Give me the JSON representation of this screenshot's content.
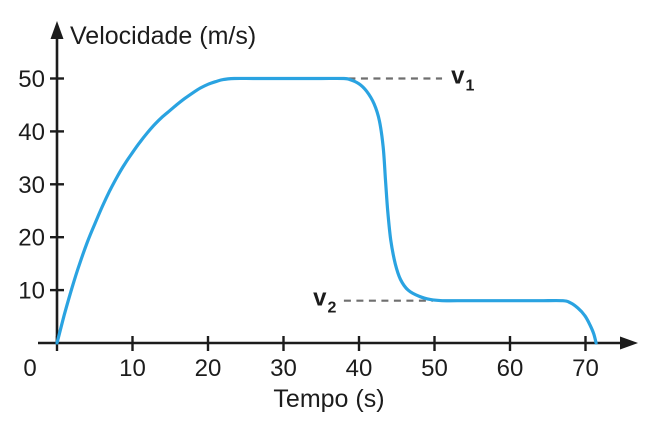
{
  "figure": {
    "background": "#ffffff",
    "curve_color": "#2aa3e1",
    "axis_color": "#1c1c1c",
    "dash_color": "#6f6f6f",
    "text_color": "#1c1c1c"
  },
  "chart_data": {
    "type": "line",
    "title": "Velocidade (m/s)",
    "ylabel": "Velocidade (m/s)",
    "xlabel": "Tempo (s)",
    "x_ticks": [
      0,
      10,
      20,
      30,
      40,
      50,
      60,
      70
    ],
    "y_ticks": [
      10,
      20,
      30,
      40,
      50
    ],
    "xlim": [
      0,
      77
    ],
    "ylim": [
      0,
      57
    ],
    "grid": false,
    "legend": "none",
    "series": [
      {
        "name": "velocidade",
        "color": "#2aa3e1",
        "points": [
          [
            0,
            0
          ],
          [
            1,
            5.5
          ],
          [
            2,
            10.5
          ],
          [
            3,
            15
          ],
          [
            4,
            19
          ],
          [
            5,
            22.5
          ],
          [
            6,
            25.8
          ],
          [
            7,
            28.8
          ],
          [
            8,
            31.5
          ],
          [
            9,
            33.9
          ],
          [
            10,
            36
          ],
          [
            11,
            38
          ],
          [
            12,
            39.8
          ],
          [
            13,
            41.4
          ],
          [
            14,
            42.8
          ],
          [
            15,
            44
          ],
          [
            16,
            45.2
          ],
          [
            17,
            46.3
          ],
          [
            18,
            47.3
          ],
          [
            19,
            48.2
          ],
          [
            20,
            48.9
          ],
          [
            21,
            49.4
          ],
          [
            22,
            49.8
          ],
          [
            23.5,
            50
          ],
          [
            26,
            50
          ],
          [
            29,
            50
          ],
          [
            32,
            50
          ],
          [
            35,
            50
          ],
          [
            38,
            50
          ],
          [
            38.8,
            49.8
          ],
          [
            40,
            49
          ],
          [
            41,
            47.6
          ],
          [
            42,
            45.2
          ],
          [
            42.7,
            42
          ],
          [
            43.2,
            37
          ],
          [
            43.5,
            31
          ],
          [
            43.8,
            25
          ],
          [
            44.2,
            19.5
          ],
          [
            44.8,
            15
          ],
          [
            45.5,
            12
          ],
          [
            46.5,
            10
          ],
          [
            48,
            8.8
          ],
          [
            49.5,
            8.2
          ],
          [
            51,
            8
          ],
          [
            53,
            8
          ],
          [
            57,
            8
          ],
          [
            61,
            8
          ],
          [
            64,
            8
          ],
          [
            67,
            8
          ],
          [
            68,
            7.6
          ],
          [
            69,
            6.6
          ],
          [
            69.9,
            5.2
          ],
          [
            70.6,
            3.4
          ],
          [
            71.1,
            1.7
          ],
          [
            71.4,
            0
          ]
        ]
      }
    ],
    "annotations": [
      {
        "id": "v1",
        "base": "v",
        "sub": "1",
        "value": 50,
        "dash_from_t": 38.6,
        "dash_to_t": 51.0,
        "label_t": 52.2,
        "label_anchor": "start"
      },
      {
        "id": "v2",
        "base": "v",
        "sub": "2",
        "value": 8,
        "dash_from_t": 38.0,
        "dash_to_t": 49.8,
        "label_t": 37.0,
        "label_anchor": "end"
      }
    ]
  }
}
